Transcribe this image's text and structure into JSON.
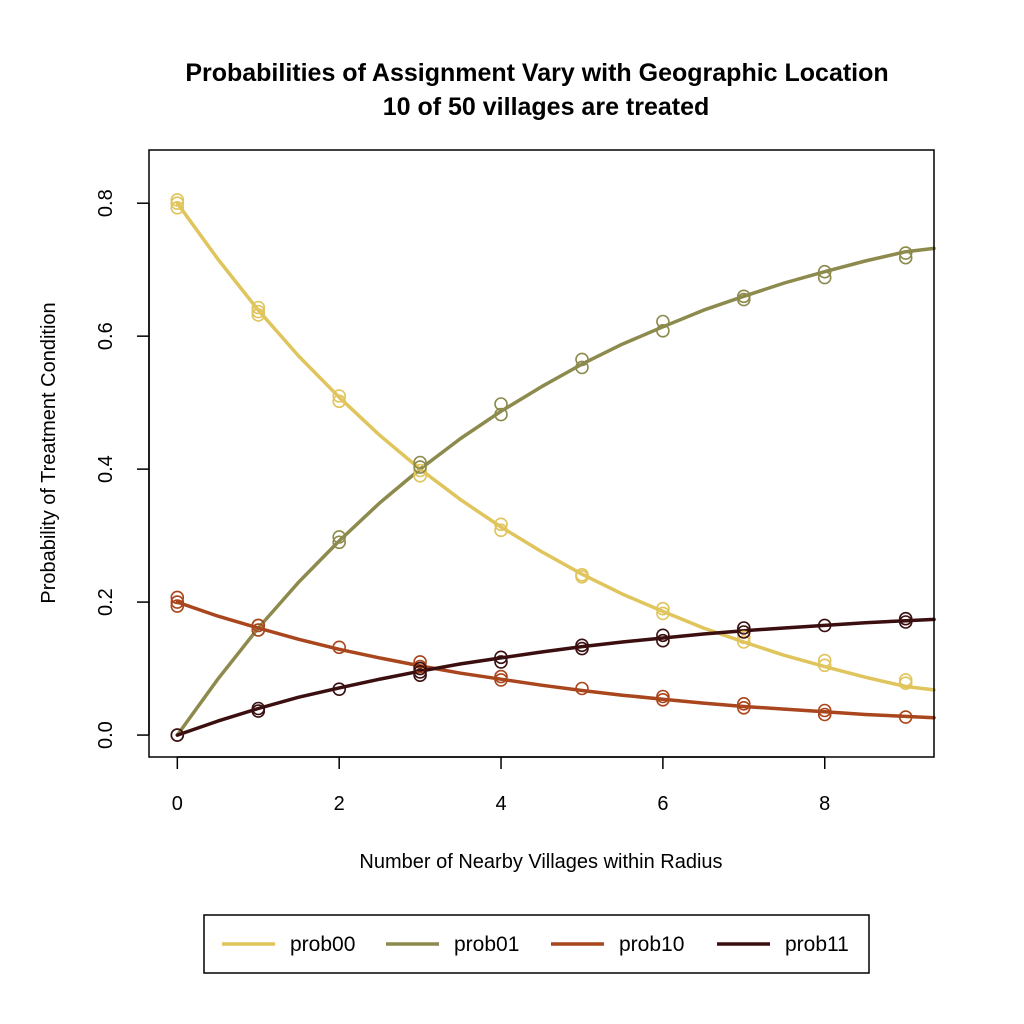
{
  "chart_data": {
    "type": "line",
    "title": "Probabilities of Assignment Vary with Geographic Location",
    "subtitle": "10 of 50 villages are treated",
    "xlabel": "Number of Nearby Villages within Radius",
    "ylabel": "Probability of Treatment Condition",
    "xlim": [
      -0.35,
      9.35
    ],
    "ylim": [
      -0.033,
      0.88
    ],
    "x_ticks": [
      0,
      2,
      4,
      6,
      8
    ],
    "x_tick_labels": [
      "0",
      "2",
      "4",
      "6",
      "8"
    ],
    "y_ticks": [
      0.0,
      0.2,
      0.4,
      0.6,
      0.8
    ],
    "y_tick_labels": [
      "0.0",
      "0.2",
      "0.4",
      "0.6",
      "0.8"
    ],
    "grid": false,
    "legend_position": "bottom",
    "curve_x": [
      0,
      0.5,
      1,
      1.5,
      2,
      2.5,
      3,
      3.5,
      4,
      4.5,
      5,
      5.5,
      6,
      6.5,
      7,
      7.5,
      8,
      8.5,
      9,
      9.35
    ],
    "series": [
      {
        "name": "prob00",
        "color": "#E0C45C",
        "curve": [
          0.8,
          0.716,
          0.639,
          0.57,
          0.508,
          0.451,
          0.4,
          0.354,
          0.313,
          0.276,
          0.242,
          0.212,
          0.186,
          0.161,
          0.14,
          0.12,
          0.103,
          0.087,
          0.073,
          0.068
        ],
        "points_x": [
          0,
          0,
          0,
          1,
          1,
          1,
          2,
          2,
          3,
          3,
          4,
          4,
          5,
          5,
          6,
          6,
          7,
          7,
          8,
          8,
          9,
          9
        ],
        "points_y": [
          0.805,
          0.8,
          0.793,
          0.643,
          0.637,
          0.632,
          0.51,
          0.502,
          0.398,
          0.39,
          0.317,
          0.308,
          0.241,
          0.238,
          0.19,
          0.183,
          0.147,
          0.14,
          0.112,
          0.105,
          0.083,
          0.078
        ]
      },
      {
        "name": "prob01",
        "color": "#8C8A4C",
        "curve": [
          0.0,
          0.084,
          0.161,
          0.23,
          0.292,
          0.349,
          0.4,
          0.446,
          0.487,
          0.524,
          0.558,
          0.588,
          0.614,
          0.639,
          0.66,
          0.68,
          0.697,
          0.713,
          0.727,
          0.732
        ],
        "points_x": [
          0,
          1,
          1,
          2,
          2,
          3,
          3,
          4,
          4,
          5,
          5,
          6,
          6,
          7,
          7,
          8,
          8,
          9,
          9
        ],
        "points_y": [
          0.0,
          0.165,
          0.158,
          0.298,
          0.29,
          0.41,
          0.403,
          0.498,
          0.482,
          0.565,
          0.553,
          0.622,
          0.608,
          0.66,
          0.655,
          0.697,
          0.688,
          0.725,
          0.718
        ]
      },
      {
        "name": "prob10",
        "color": "#A9461D",
        "curve": [
          0.2,
          0.179,
          0.161,
          0.144,
          0.129,
          0.116,
          0.104,
          0.093,
          0.084,
          0.075,
          0.067,
          0.06,
          0.054,
          0.048,
          0.043,
          0.039,
          0.035,
          0.031,
          0.028,
          0.026
        ],
        "points_x": [
          0,
          0,
          0,
          1,
          1,
          2,
          3,
          3,
          4,
          4,
          5,
          6,
          6,
          7,
          7,
          8,
          8,
          9
        ],
        "points_y": [
          0.207,
          0.2,
          0.194,
          0.165,
          0.158,
          0.132,
          0.11,
          0.103,
          0.088,
          0.083,
          0.07,
          0.058,
          0.053,
          0.047,
          0.041,
          0.037,
          0.031,
          0.027
        ]
      },
      {
        "name": "prob11",
        "color": "#3B0F10",
        "curve": [
          0.0,
          0.021,
          0.04,
          0.057,
          0.071,
          0.084,
          0.096,
          0.107,
          0.116,
          0.125,
          0.133,
          0.14,
          0.146,
          0.152,
          0.157,
          0.161,
          0.165,
          0.169,
          0.172,
          0.174
        ],
        "points_x": [
          0,
          1,
          1,
          2,
          3,
          3,
          3,
          4,
          4,
          5,
          5,
          6,
          6,
          7,
          7,
          8,
          9,
          9
        ],
        "points_y": [
          0.0,
          0.04,
          0.036,
          0.069,
          0.1,
          0.095,
          0.09,
          0.117,
          0.11,
          0.135,
          0.13,
          0.15,
          0.142,
          0.161,
          0.155,
          0.165,
          0.175,
          0.17
        ]
      }
    ]
  }
}
